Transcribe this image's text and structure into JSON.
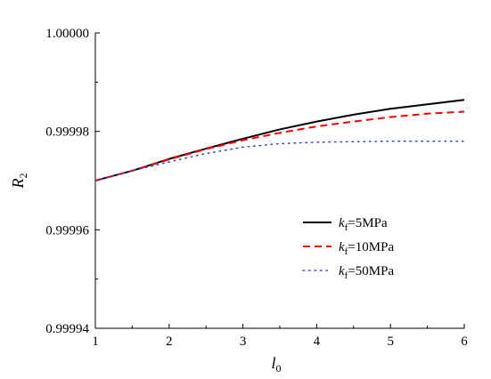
{
  "chart_data": {
    "type": "line",
    "xlabel": "l",
    "xlabel_sub": "0",
    "ylabel": "R",
    "ylabel_sub": "2",
    "xlim": [
      1,
      6
    ],
    "ylim": [
      0.99994,
      1.0
    ],
    "x_ticks": [
      1,
      2,
      3,
      4,
      5,
      6
    ],
    "x_tick_labels": [
      "1",
      "2",
      "3",
      "4",
      "5",
      "6"
    ],
    "y_ticks": [
      0.99994,
      0.99996,
      0.99998,
      1.0
    ],
    "y_tick_labels": [
      "0.99994",
      "0.99996",
      "0.99998",
      "1.00000"
    ],
    "grid": false,
    "legend_position": "center-right",
    "x": [
      1,
      1.5,
      2,
      2.5,
      3,
      3.5,
      4,
      4.5,
      5,
      5.5,
      6
    ],
    "series": [
      {
        "name": "k_f=5MPa",
        "label_k": "k",
        "label_sub": "f",
        "label_rest": "=5MPa",
        "color": "#000000",
        "style": "solid",
        "values": [
          0.99997,
          0.999972,
          0.9999744,
          0.9999765,
          0.9999785,
          0.9999804,
          0.999982,
          0.9999834,
          0.9999846,
          0.9999855,
          0.9999864
        ]
      },
      {
        "name": "k_f=10MPa",
        "label_k": "k",
        "label_sub": "f",
        "label_rest": "=10MPa",
        "color": "#ff0000",
        "style": "dashed",
        "values": [
          0.99997,
          0.999972,
          0.9999743,
          0.9999764,
          0.9999782,
          0.9999797,
          0.999981,
          0.999982,
          0.9999829,
          0.9999836,
          0.999984
        ]
      },
      {
        "name": "k_f=50MPa",
        "label_k": "k",
        "label_sub": "f",
        "label_rest": "=50MPa",
        "color": "#3344cc",
        "style": "dotted",
        "values": [
          0.99997,
          0.999972,
          0.9999738,
          0.9999755,
          0.9999768,
          0.9999775,
          0.9999778,
          0.9999779,
          0.999978,
          0.999978,
          0.999978
        ]
      }
    ]
  }
}
